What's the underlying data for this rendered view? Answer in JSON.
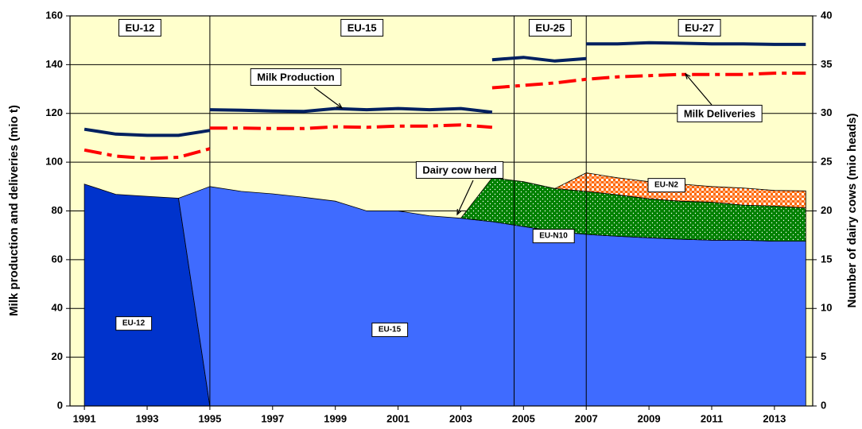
{
  "chart_data": {
    "type": "area-line",
    "y_label": "Milk production and deliveries (mio t)",
    "y2_label": "Number of dairy cows (mio heads)",
    "x": [
      1991,
      1992,
      1993,
      1994,
      1995,
      1996,
      1997,
      1998,
      1999,
      2000,
      2001,
      2002,
      2003,
      2004,
      2005,
      2006,
      2007,
      2008,
      2009,
      2010,
      2011,
      2012,
      2013,
      2014
    ],
    "xlim": [
      1990.54,
      2014.22
    ],
    "xticks": [
      1991,
      1993,
      1995,
      1997,
      1999,
      2001,
      2003,
      2005,
      2007,
      2009,
      2011,
      2013
    ],
    "ylim": [
      0,
      160
    ],
    "yticks": [
      0,
      20,
      40,
      60,
      80,
      100,
      120,
      140,
      160
    ],
    "y2lim": [
      0,
      40
    ],
    "y2ticks": [
      0,
      5,
      10,
      15,
      20,
      25,
      30,
      35,
      40
    ],
    "grid": true,
    "background": "#ffffcc",
    "period_labels": [
      "EU-12",
      "EU-15",
      "EU-25",
      "EU-27"
    ],
    "period_boundaries": [
      1995,
      2004.7,
      2007
    ],
    "annotation": "Dairy cow herd",
    "series": [
      {
        "name": "EU-12",
        "type": "area",
        "axis": "y2",
        "color": "#0033cc",
        "pattern": "solid",
        "values": [
          22.75,
          21.7,
          21.5,
          21.3,
          0,
          null,
          null,
          null,
          null,
          null,
          null,
          null,
          null,
          null,
          null,
          null,
          null,
          null,
          null,
          null,
          null,
          null,
          null,
          null
        ]
      },
      {
        "name": "EU-15",
        "type": "area",
        "axis": "y2",
        "color": "#3f6bff",
        "pattern": "solid",
        "values": [
          null,
          null,
          null,
          0,
          22.5,
          22,
          21.75,
          21.4,
          21,
          20,
          20,
          19.5,
          19.25,
          18.9,
          18.4,
          17.9,
          17.6,
          17.4,
          17.25,
          17.1,
          17,
          17,
          16.9,
          16.9
        ]
      },
      {
        "name": "EU-N10",
        "type": "area",
        "axis": "y2",
        "color": "#008000",
        "pattern": "dots",
        "values": [
          null,
          null,
          null,
          null,
          null,
          null,
          null,
          null,
          null,
          null,
          null,
          null,
          0,
          4.5,
          4.6,
          4.4,
          4.4,
          4.25,
          4,
          3.9,
          3.9,
          3.6,
          3.6,
          3.4
        ]
      },
      {
        "name": "EU-N2",
        "type": "area",
        "axis": "y2",
        "color": "#ff6600",
        "pattern": "checks",
        "values": [
          null,
          null,
          null,
          null,
          null,
          null,
          null,
          null,
          null,
          null,
          null,
          null,
          null,
          null,
          null,
          0,
          1.9,
          1.75,
          1.75,
          1.75,
          1.6,
          1.75,
          1.6,
          1.75
        ]
      },
      {
        "name": "Milk Production",
        "type": "line",
        "axis": "y",
        "color": "#002060",
        "dash": "solid",
        "segments": [
          {
            "x": [
              1991,
              1992,
              1993,
              1994,
              1995
            ],
            "values": [
              113.5,
              111.5,
              111,
              111,
              113
            ]
          },
          {
            "x": [
              1995,
              1996,
              1997,
              1998,
              1999,
              2000,
              2001,
              2002,
              2003,
              2004
            ],
            "values": [
              121.5,
              121.3,
              121,
              120.8,
              122,
              121.5,
              122,
              121.5,
              122,
              120.5
            ]
          },
          {
            "x": [
              2004,
              2005,
              2006,
              2007
            ],
            "values": [
              142,
              143,
              141.5,
              142.5
            ]
          },
          {
            "x": [
              2007,
              2008,
              2009,
              2010,
              2011,
              2012,
              2013,
              2014
            ],
            "values": [
              148.5,
              148.5,
              149,
              148.8,
              148.5,
              148.5,
              148.3,
              148.3
            ]
          }
        ]
      },
      {
        "name": "Milk Deliveries",
        "type": "line",
        "axis": "y",
        "color": "#ff0000",
        "dash": "dashdot",
        "segments": [
          {
            "x": [
              1991,
              1992,
              1993,
              1994,
              1995
            ],
            "values": [
              105,
              102.5,
              101.5,
              102,
              105.5
            ]
          },
          {
            "x": [
              1995,
              1996,
              1997,
              1998,
              1999,
              2000,
              2001,
              2002,
              2003,
              2004
            ],
            "values": [
              114,
              114,
              113.8,
              113.8,
              114.5,
              114.3,
              114.8,
              114.8,
              115.3,
              114.3
            ]
          },
          {
            "x": [
              2004,
              2005,
              2006,
              2007,
              2008,
              2009,
              2010,
              2011,
              2012,
              2013,
              2014
            ],
            "values": [
              130.5,
              131.5,
              132.5,
              134,
              135,
              135.5,
              136,
              136,
              136,
              136.5,
              136.5
            ]
          }
        ]
      }
    ]
  }
}
